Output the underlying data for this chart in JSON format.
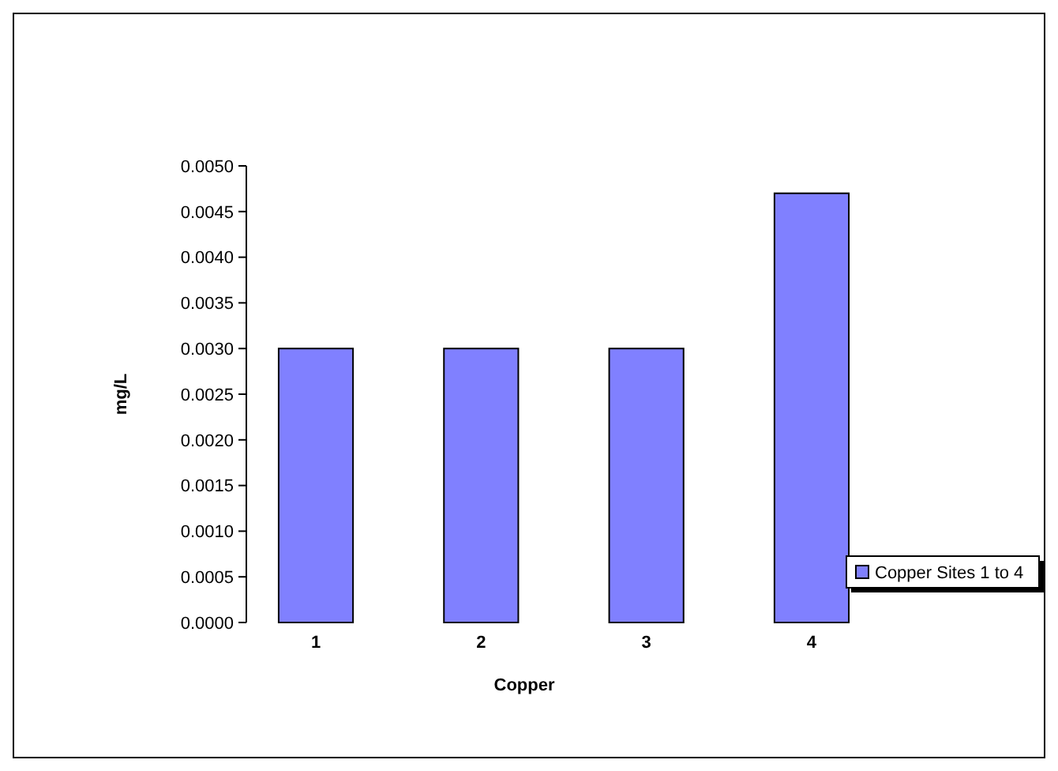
{
  "chart_data": {
    "type": "bar",
    "xlabel": "Copper",
    "ylabel": "mg/L",
    "categories": [
      "1",
      "2",
      "3",
      "4"
    ],
    "series": [
      {
        "name": "Copper Sites 1 to 4",
        "color": "#8080ff",
        "values": [
          0.003,
          0.003,
          0.003,
          0.0047
        ]
      }
    ],
    "ylim": [
      0,
      0.005
    ],
    "yticks": [
      {
        "value": 0,
        "label": "0.0000"
      },
      {
        "value": 0.0005,
        "label": "0.0005"
      },
      {
        "value": 0.001,
        "label": "0.0010"
      },
      {
        "value": 0.0015,
        "label": "0.0015"
      },
      {
        "value": 0.002,
        "label": "0.0020"
      },
      {
        "value": 0.0025,
        "label": "0.0025"
      },
      {
        "value": 0.003,
        "label": "0.0030"
      },
      {
        "value": 0.0035,
        "label": "0.0035"
      },
      {
        "value": 0.004,
        "label": "0.0040"
      },
      {
        "value": 0.0045,
        "label": "0.0045"
      },
      {
        "value": 0.005,
        "label": "0.0050"
      }
    ],
    "grid": false,
    "legend": "bottom right"
  }
}
